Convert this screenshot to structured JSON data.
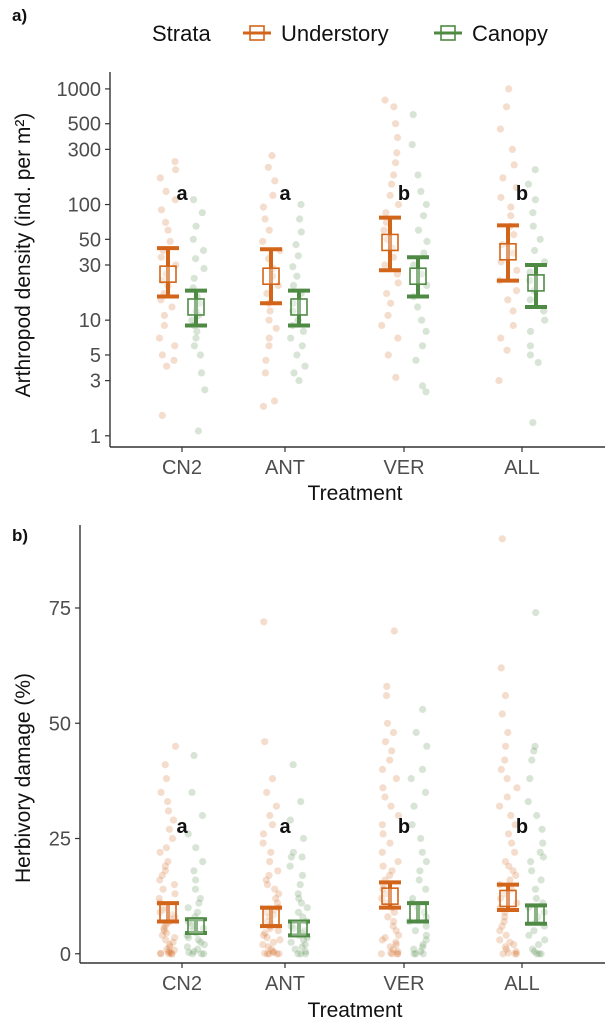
{
  "colors": {
    "understory": "#d2651a",
    "canopy": "#4f8a45"
  },
  "legend": {
    "title": "Strata",
    "entries": [
      "Understory",
      "Canopy"
    ]
  },
  "chart_data": [
    {
      "panel": "a)",
      "type": "scatter",
      "xlabel": "Treatment",
      "ylabel": "Arthropod density (ind. per m²)",
      "yscale": "log",
      "ylim": [
        0.8,
        1400
      ],
      "yticks": [
        1,
        3,
        5,
        10,
        30,
        50,
        100,
        300,
        500,
        1000
      ],
      "categories": [
        "CN2",
        "ANT",
        "VER",
        "ALL"
      ],
      "series": [
        {
          "name": "Understory",
          "mean": [
            25,
            24,
            47,
            39
          ],
          "lower": [
            16,
            14,
            27,
            22
          ],
          "upper": [
            42,
            41,
            77,
            66
          ],
          "points": [
            [
              235,
              200,
              170,
              130,
              110,
              90,
              70,
              60,
              48,
              40,
              35,
              30,
              25,
              22,
              20,
              17,
              15,
              13,
              11,
              9,
              7,
              6,
              5,
              4.5,
              4,
              1.5
            ],
            [
              265,
              210,
              160,
              120,
              95,
              75,
              60,
              48,
              40,
              34,
              28,
              24,
              20,
              17,
              14,
              12,
              10,
              8.5,
              7,
              6,
              4.5,
              3.5,
              2,
              1.8
            ],
            [
              800,
              700,
              500,
              380,
              280,
              230,
              180,
              150,
              120,
              100,
              85,
              70,
              60,
              50,
              42,
              35,
              30,
              25,
              21,
              17,
              14,
              11,
              9,
              7,
              5,
              3.2
            ],
            [
              1000,
              700,
              450,
              300,
              220,
              170,
              140,
              115,
              95,
              80,
              65,
              55,
              45,
              38,
              32,
              27,
              22,
              18,
              15,
              12,
              9,
              7,
              5.5,
              3
            ]
          ]
        },
        {
          "name": "Canopy",
          "mean": [
            13,
            13,
            24,
            21
          ],
          "lower": [
            9,
            9,
            16,
            13
          ],
          "upper": [
            18,
            18,
            35,
            30
          ],
          "points": [
            [
              110,
              85,
              65,
              50,
              40,
              34,
              28,
              23,
              19,
              16,
              14,
              12,
              11,
              10,
              9,
              8,
              7,
              6,
              5,
              3.5,
              2.5,
              1.1
            ],
            [
              100,
              75,
              58,
              45,
              36,
              29,
              24,
              20,
              17,
              14,
              12,
              10,
              9,
              8,
              7,
              6,
              5,
              4,
              3.5,
              3
            ],
            [
              600,
              330,
              180,
              130,
              100,
              80,
              60,
              48,
              38,
              30,
              25,
              20,
              16,
              13,
              10,
              8,
              6,
              4.5,
              2.7,
              2.4
            ],
            [
              200,
              150,
              110,
              85,
              65,
              50,
              40,
              32,
              26,
              22,
              18,
              15,
              12,
              10,
              8,
              6,
              5,
              4.3,
              1.3
            ]
          ]
        }
      ],
      "annotations": [
        "a",
        "a",
        "b",
        "b"
      ]
    },
    {
      "panel": "b)",
      "type": "scatter",
      "xlabel": "Treatment",
      "ylabel": "Herbivory damage (%)",
      "yscale": "linear",
      "ylim": [
        -2,
        93
      ],
      "yticks": [
        0,
        25,
        50,
        75
      ],
      "categories": [
        "CN2",
        "ANT",
        "VER",
        "ALL"
      ],
      "series": [
        {
          "name": "Understory",
          "mean": [
            9,
            8,
            12.5,
            12
          ],
          "lower": [
            7,
            6,
            10,
            9.5
          ],
          "upper": [
            11,
            10,
            15.5,
            15
          ],
          "points": [
            [
              45,
              41,
              38,
              35,
              33,
              31,
              29,
              27,
              25,
              23,
              22,
              20,
              19,
              18,
              17,
              16,
              15,
              14,
              13,
              12,
              11,
              10,
              9.5,
              9,
              8.5,
              8,
              7.5,
              7,
              6.5,
              6,
              5.5,
              5,
              4.5,
              4,
              3.5,
              3,
              2.5,
              2,
              1.5,
              1,
              0.8,
              0.5,
              0.3,
              0.1,
              0,
              0,
              0,
              0
            ],
            [
              72,
              46,
              38,
              35,
              32,
              30,
              28,
              26,
              24,
              22,
              20,
              18,
              17,
              16,
              15,
              14,
              13,
              12,
              11,
              10,
              9.5,
              9,
              8.5,
              8,
              7,
              6.5,
              6,
              5.5,
              5,
              4.5,
              4,
              3.5,
              3,
              2.5,
              2,
              1.5,
              1,
              0.5,
              0.3,
              0.1,
              0,
              0,
              0,
              0
            ],
            [
              70,
              58,
              56,
              50,
              48,
              46,
              44,
              42,
              40,
              38,
              36,
              34,
              32,
              30,
              28,
              26,
              24,
              22,
              20,
              19,
              18,
              17,
              16,
              15,
              14,
              13,
              12,
              11,
              10,
              9,
              8,
              7,
              6,
              5,
              4,
              3.5,
              3,
              2.5,
              2,
              1.5,
              1,
              0.5,
              0.2,
              0,
              0,
              0,
              0
            ],
            [
              90,
              62,
              56,
              52,
              48,
              45,
              42,
              40,
              38,
              36,
              34,
              32,
              30,
              28,
              26,
              24,
              22,
              20,
              19,
              18,
              17,
              16,
              15,
              14,
              13,
              12,
              11,
              10,
              9,
              8,
              7,
              6,
              5,
              4,
              3,
              2.5,
              2,
              1.5,
              1,
              0.5,
              0.2,
              0,
              0,
              0
            ]
          ]
        },
        {
          "name": "Canopy",
          "mean": [
            6,
            5.5,
            9,
            8.5
          ],
          "lower": [
            4.5,
            4,
            7,
            6.5
          ],
          "upper": [
            7.5,
            7,
            11,
            10.5
          ],
          "points": [
            [
              43,
              35,
              30,
              26,
              23,
              20,
              18,
              16,
              14,
              12,
              11,
              10,
              9,
              8,
              7,
              6.5,
              6,
              5.5,
              5,
              4.5,
              4,
              3.5,
              3,
              2.5,
              2,
              1.5,
              1,
              0.5,
              0.3,
              0,
              0,
              0
            ],
            [
              41,
              33,
              29,
              25,
              22,
              21,
              21,
              19,
              17,
              15,
              13,
              12,
              11,
              10,
              9,
              8,
              7,
              6,
              5.5,
              5,
              4.5,
              4,
              3.5,
              3,
              2.5,
              2,
              1.5,
              1,
              0.5,
              0,
              0,
              0
            ],
            [
              53,
              48,
              45,
              40,
              38,
              35,
              32,
              28,
              25,
              22,
              20,
              18,
              16,
              14,
              12,
              11,
              10,
              9,
              8,
              7,
              6,
              5,
              4,
              3,
              2,
              1.5,
              1,
              0.5,
              0,
              0,
              0
            ],
            [
              74,
              45,
              44,
              42,
              38,
              33,
              30,
              27,
              24,
              22,
              21,
              20,
              18,
              16,
              14,
              12,
              11,
              10,
              9,
              8,
              7,
              6,
              5,
              4,
              3,
              2,
              1,
              0.5,
              0,
              0,
              0
            ]
          ]
        }
      ],
      "annotations": [
        "a",
        "a",
        "b",
        "b"
      ]
    }
  ]
}
